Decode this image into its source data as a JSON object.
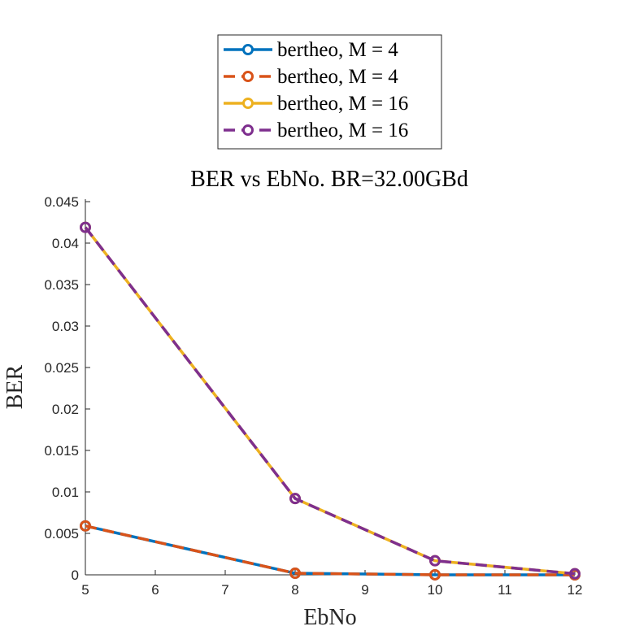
{
  "chart_data": {
    "type": "line",
    "title": "BER vs EbNo. BR=32.00GBd",
    "xlabel": "EbNo",
    "ylabel": "BER",
    "xlim": [
      5,
      12
    ],
    "ylim": [
      0,
      0.045
    ],
    "xticks": [
      5,
      6,
      7,
      8,
      9,
      10,
      11,
      12
    ],
    "yticks": [
      0,
      0.005,
      0.01,
      0.015,
      0.02,
      0.025,
      0.03,
      0.035,
      0.04,
      0.045
    ],
    "x": [
      5,
      8,
      10,
      12
    ],
    "grid": false,
    "legend_position": "top (outside plot area)",
    "series": [
      {
        "name": "bertheo, M = 4",
        "values": [
          0.0059,
          0.00019,
          3.9e-06,
          0.0
        ],
        "color": "#0072BD",
        "style": "solid",
        "marker": "circle"
      },
      {
        "name": "bertheo, M = 4",
        "values": [
          0.0059,
          0.00019,
          3.9e-06,
          0.0
        ],
        "color": "#D95319",
        "style": "dashed",
        "marker": "circle"
      },
      {
        "name": "bertheo, M = 16",
        "values": [
          0.0419,
          0.0092,
          0.0017,
          0.00013
        ],
        "color": "#EDB120",
        "style": "solid",
        "marker": "circle"
      },
      {
        "name": "bertheo, M = 16",
        "values": [
          0.0419,
          0.0092,
          0.0017,
          0.00013
        ],
        "color": "#7E2F8E",
        "style": "dashed",
        "marker": "circle"
      }
    ]
  }
}
